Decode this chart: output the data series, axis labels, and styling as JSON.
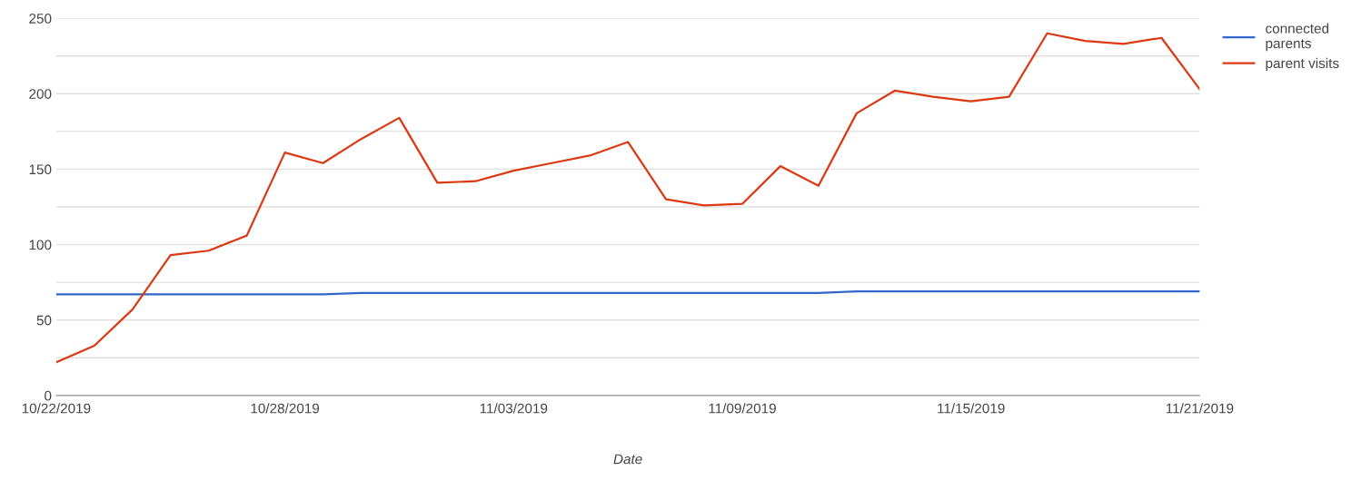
{
  "chart_data": {
    "type": "line",
    "xlabel": "Date",
    "x": [
      "2019-10-22",
      "2019-10-23",
      "2019-10-24",
      "2019-10-25",
      "2019-10-26",
      "2019-10-27",
      "2019-10-28",
      "2019-10-29",
      "2019-10-30",
      "2019-10-31",
      "2019-11-01",
      "2019-11-02",
      "2019-11-03",
      "2019-11-04",
      "2019-11-05",
      "2019-11-06",
      "2019-11-07",
      "2019-11-08",
      "2019-11-09",
      "2019-11-10",
      "2019-11-11",
      "2019-11-12",
      "2019-11-13",
      "2019-11-14",
      "2019-11-15",
      "2019-11-16",
      "2019-11-17",
      "2019-11-18",
      "2019-11-19",
      "2019-11-20",
      "2019-11-21"
    ],
    "series": [
      {
        "name": "connected parents",
        "color": "#3366cc",
        "values": [
          67,
          67,
          67,
          67,
          67,
          67,
          67,
          67,
          68,
          68,
          68,
          68,
          68,
          68,
          68,
          68,
          68,
          68,
          68,
          68,
          68,
          69,
          69,
          69,
          69,
          69,
          69,
          69,
          69,
          69,
          69
        ]
      },
      {
        "name": "parent visits",
        "color": "#dc3912",
        "values": [
          22,
          33,
          57,
          93,
          96,
          106,
          161,
          154,
          170,
          184,
          141,
          142,
          149,
          154,
          159,
          168,
          130,
          126,
          127,
          152,
          139,
          187,
          202,
          198,
          195,
          198,
          240,
          235,
          233,
          237,
          203
        ]
      }
    ],
    "xlim": [
      "2019-10-22",
      "2019-11-21"
    ],
    "xticks": [
      {
        "value": "2019-10-22",
        "label": "10/22/2019"
      },
      {
        "value": "2019-10-28",
        "label": "10/28/2019"
      },
      {
        "value": "2019-11-03",
        "label": "11/03/2019"
      },
      {
        "value": "2019-11-09",
        "label": "11/09/2019"
      },
      {
        "value": "2019-11-15",
        "label": "11/15/2019"
      },
      {
        "value": "2019-11-21",
        "label": "11/21/2019"
      }
    ],
    "ylim": [
      0,
      250
    ],
    "yticks": [
      0,
      {
        "value": 25,
        "label": null
      },
      50,
      {
        "value": 75,
        "label": null
      },
      100,
      {
        "value": 125,
        "label": null
      },
      150,
      {
        "value": 175,
        "label": null
      },
      200,
      {
        "value": 225,
        "label": null
      },
      250
    ],
    "grid": "y",
    "legend": "top right",
    "marker": "none",
    "line_style": "solid"
  }
}
